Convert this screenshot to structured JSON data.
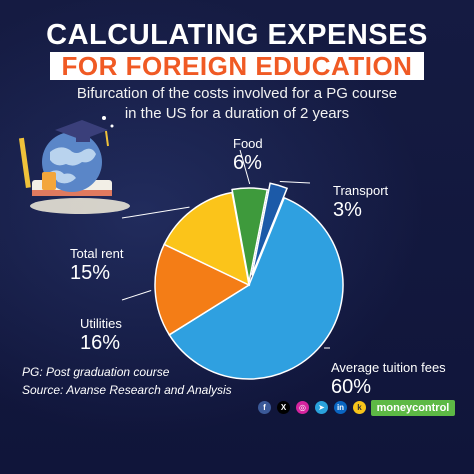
{
  "header": {
    "title_line1": "CALCULATING EXPENSES",
    "title_line2": "FOR FOREIGN EDUCATION",
    "subtitle_line1": "Bifurcation of the costs involved for a PG course",
    "subtitle_line2": "in the US for a duration of 2 years"
  },
  "chart_data": {
    "type": "pie",
    "title": "",
    "slices": [
      {
        "label": "Average tuition fees",
        "value": 60,
        "value_label": "60%",
        "color": "#2fa0e0"
      },
      {
        "label": "Utilities",
        "value": 16,
        "value_label": "16%",
        "color": "#f47d16"
      },
      {
        "label": "Total rent",
        "value": 15,
        "value_label": "15%",
        "color": "#fbc41a"
      },
      {
        "label": "Food",
        "value": 6,
        "value_label": "6%",
        "color": "#3e9a3c"
      },
      {
        "label": "Transport",
        "value": 3,
        "value_label": "3%",
        "color": "#1c5aa8"
      }
    ],
    "legend": "none"
  },
  "footer": {
    "note": "PG: Post graduation course",
    "source": "Source: Avanse Research and Analysis",
    "brand": "moneycontrol",
    "social_icons": [
      "facebook-icon",
      "x-icon",
      "instagram-icon",
      "telegram-icon",
      "linkedin-icon",
      "koo-icon"
    ]
  }
}
